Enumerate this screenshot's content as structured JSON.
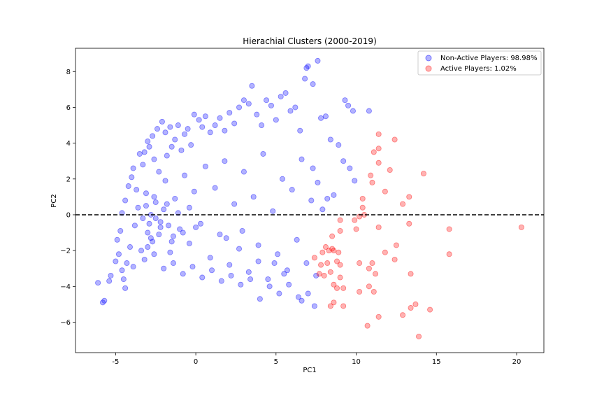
{
  "chart_data": {
    "type": "scatter",
    "title": "Hierachial Clusters (2000-2019)",
    "xlabel": "PC1",
    "ylabel": "PC2",
    "xlim": [
      -7.5,
      21.7
    ],
    "ylim": [
      -7.7,
      9.3
    ],
    "xticks": [
      -5,
      0,
      5,
      10,
      15,
      20
    ],
    "yticks": [
      -6,
      -4,
      -2,
      0,
      2,
      4,
      6,
      8
    ],
    "grid": false,
    "legend": "top-right",
    "reference_line": {
      "axis": "y",
      "value": 0,
      "style": "dashed",
      "color": "#000000"
    },
    "series": [
      {
        "name": "Non-Active Players: 98.98%",
        "color": "#0000ff",
        "alpha": 0.3,
        "points": [
          [
            -6.1,
            -3.8
          ],
          [
            -5.8,
            -4.9
          ],
          [
            -5.7,
            -4.8
          ],
          [
            -5.4,
            -3.7
          ],
          [
            -5.3,
            -3.4
          ],
          [
            -5.0,
            -2.6
          ],
          [
            -4.8,
            -2.2
          ],
          [
            -4.6,
            -3.1
          ],
          [
            -4.5,
            -3.6
          ],
          [
            -4.4,
            -4.1
          ],
          [
            -4.3,
            -2.7
          ],
          [
            -4.9,
            -1.4
          ],
          [
            -4.7,
            -0.9
          ],
          [
            -4.6,
            0.1
          ],
          [
            -4.4,
            0.8
          ],
          [
            -4.2,
            1.6
          ],
          [
            -4.0,
            2.1
          ],
          [
            -3.9,
            2.6
          ],
          [
            -3.7,
            1.4
          ],
          [
            -3.5,
            3.4
          ],
          [
            -3.3,
            2.8
          ],
          [
            -3.2,
            3.5
          ],
          [
            -3.0,
            4.1
          ],
          [
            -2.9,
            3.8
          ],
          [
            -2.7,
            4.4
          ],
          [
            -2.6,
            3.1
          ],
          [
            -2.4,
            4.8
          ],
          [
            -2.3,
            2.4
          ],
          [
            -2.1,
            5.2
          ],
          [
            -1.9,
            4.6
          ],
          [
            -1.8,
            3.3
          ],
          [
            -1.6,
            4.9
          ],
          [
            -1.5,
            3.8
          ],
          [
            -1.3,
            4.2
          ],
          [
            -1.1,
            5.0
          ],
          [
            -0.9,
            3.6
          ],
          [
            -0.7,
            4.5
          ],
          [
            -0.5,
            4.8
          ],
          [
            -0.3,
            3.9
          ],
          [
            -0.1,
            5.6
          ],
          [
            0.2,
            5.3
          ],
          [
            0.4,
            4.9
          ],
          [
            0.6,
            5.5
          ],
          [
            0.9,
            4.6
          ],
          [
            1.2,
            5.0
          ],
          [
            1.5,
            5.4
          ],
          [
            1.8,
            4.7
          ],
          [
            2.1,
            5.7
          ],
          [
            2.4,
            5.1
          ],
          [
            2.7,
            6.0
          ],
          [
            3.0,
            6.4
          ],
          [
            3.3,
            6.2
          ],
          [
            3.5,
            7.2
          ],
          [
            3.8,
            5.6
          ],
          [
            4.1,
            5.0
          ],
          [
            4.4,
            6.4
          ],
          [
            4.7,
            6.1
          ],
          [
            5.0,
            5.3
          ],
          [
            5.3,
            6.6
          ],
          [
            5.6,
            6.8
          ],
          [
            5.9,
            5.8
          ],
          [
            6.2,
            6.0
          ],
          [
            6.5,
            4.7
          ],
          [
            6.8,
            7.6
          ],
          [
            6.9,
            8.2
          ],
          [
            7.0,
            8.3
          ],
          [
            7.3,
            7.3
          ],
          [
            7.6,
            8.6
          ],
          [
            7.8,
            5.4
          ],
          [
            8.1,
            5.5
          ],
          [
            9.3,
            6.4
          ],
          [
            9.5,
            6.1
          ],
          [
            9.8,
            5.8
          ],
          [
            10.8,
            5.8
          ],
          [
            8.4,
            4.2
          ],
          [
            8.9,
            3.9
          ],
          [
            9.2,
            3.0
          ],
          [
            9.6,
            2.6
          ],
          [
            9.9,
            1.9
          ],
          [
            8.6,
            1.1
          ],
          [
            8.2,
            0.9
          ],
          [
            7.6,
            1.8
          ],
          [
            7.3,
            2.6
          ],
          [
            7.9,
            0.3
          ],
          [
            -4.1,
            -1.8
          ],
          [
            -3.8,
            -0.6
          ],
          [
            -3.6,
            0.4
          ],
          [
            -3.4,
            -2.0
          ],
          [
            -3.1,
            1.2
          ],
          [
            -2.8,
            -1.3
          ],
          [
            -2.5,
            0.7
          ],
          [
            -2.2,
            -0.4
          ],
          [
            -1.9,
            1.9
          ],
          [
            -1.6,
            -2.1
          ],
          [
            -1.3,
            0.9
          ],
          [
            -1.0,
            -0.8
          ],
          [
            -0.7,
            2.2
          ],
          [
            -0.4,
            -1.6
          ],
          [
            -0.1,
            1.3
          ],
          [
            0.3,
            -0.5
          ],
          [
            0.6,
            2.7
          ],
          [
            0.9,
            -2.4
          ],
          [
            1.2,
            1.5
          ],
          [
            1.5,
            -1.1
          ],
          [
            1.8,
            3.0
          ],
          [
            2.1,
            -2.8
          ],
          [
            2.4,
            0.6
          ],
          [
            2.7,
            -1.9
          ],
          [
            3.0,
            2.4
          ],
          [
            3.3,
            -3.2
          ],
          [
            3.6,
            1.0
          ],
          [
            3.9,
            -2.6
          ],
          [
            4.2,
            3.4
          ],
          [
            4.5,
            -3.6
          ],
          [
            4.8,
            0.2
          ],
          [
            5.1,
            -2.2
          ],
          [
            5.4,
            2.0
          ],
          [
            5.7,
            -3.1
          ],
          [
            6.0,
            1.4
          ],
          [
            6.3,
            -1.4
          ],
          [
            6.6,
            3.1
          ],
          [
            6.9,
            -2.7
          ],
          [
            7.2,
            0.8
          ],
          [
            7.5,
            -3.4
          ],
          [
            -3.9,
            -2.9
          ],
          [
            -3.2,
            -2.5
          ],
          [
            -2.6,
            -2.2
          ],
          [
            -2.0,
            -3.0
          ],
          [
            -1.4,
            -2.7
          ],
          [
            -0.8,
            -3.3
          ],
          [
            -0.2,
            -2.9
          ],
          [
            0.4,
            -3.5
          ],
          [
            1.0,
            -3.1
          ],
          [
            1.6,
            -3.7
          ],
          [
            2.2,
            -3.4
          ],
          [
            2.8,
            -3.9
          ],
          [
            3.4,
            -3.6
          ],
          [
            4.0,
            -4.7
          ],
          [
            4.6,
            -4.0
          ],
          [
            5.2,
            -4.4
          ],
          [
            5.8,
            -3.9
          ],
          [
            6.4,
            -4.6
          ],
          [
            7.0,
            -4.4
          ],
          [
            7.4,
            -5.1
          ],
          [
            6.6,
            -4.8
          ],
          [
            5.5,
            -3.3
          ],
          [
            4.9,
            -2.7
          ],
          [
            3.9,
            -1.7
          ],
          [
            2.9,
            -0.9
          ],
          [
            1.9,
            -1.3
          ],
          [
            -3.0,
            -1.0
          ],
          [
            -2.8,
            0.0
          ],
          [
            -2.9,
            -0.5
          ],
          [
            -3.1,
            0.5
          ],
          [
            -2.7,
            -1.5
          ],
          [
            -2.5,
            -0.2
          ],
          [
            -2.3,
            -1.1
          ],
          [
            -2.0,
            0.3
          ],
          [
            -1.7,
            -0.6
          ],
          [
            -1.4,
            -1.2
          ],
          [
            -3.3,
            -0.2
          ],
          [
            -3.0,
            -1.8
          ],
          [
            -2.6,
            1.0
          ],
          [
            -2.2,
            -0.7
          ],
          [
            -1.8,
            0.6
          ],
          [
            -1.5,
            -1.5
          ],
          [
            -1.1,
            0.1
          ],
          [
            -0.8,
            -1.0
          ],
          [
            -0.4,
            0.4
          ],
          [
            0.0,
            -0.7
          ]
        ]
      },
      {
        "name": "Active Players: 1.02%",
        "color": "#ff0000",
        "alpha": 0.3,
        "points": [
          [
            11.4,
            4.5
          ],
          [
            12.4,
            4.2
          ],
          [
            11.1,
            3.5
          ],
          [
            11.4,
            3.7
          ],
          [
            11.4,
            2.9
          ],
          [
            14.2,
            2.3
          ],
          [
            12.1,
            2.5
          ],
          [
            10.9,
            2.2
          ],
          [
            11.0,
            1.8
          ],
          [
            11.8,
            1.3
          ],
          [
            13.3,
            1.0
          ],
          [
            12.9,
            0.6
          ],
          [
            10.4,
            0.9
          ],
          [
            10.4,
            0.4
          ],
          [
            10.2,
            -0.1
          ],
          [
            10.5,
            0.0
          ],
          [
            9.9,
            -0.3
          ],
          [
            9.0,
            -0.3
          ],
          [
            9.0,
            -0.9
          ],
          [
            10.0,
            -0.8
          ],
          [
            11.4,
            -0.7
          ],
          [
            13.3,
            -0.5
          ],
          [
            15.8,
            -0.8
          ],
          [
            20.3,
            -0.7
          ],
          [
            8.5,
            -1.2
          ],
          [
            8.1,
            -1.8
          ],
          [
            8.3,
            -2.0
          ],
          [
            8.6,
            -2.0
          ],
          [
            8.9,
            -2.1
          ],
          [
            7.9,
            -2.1
          ],
          [
            7.4,
            -2.4
          ],
          [
            7.8,
            -2.8
          ],
          [
            8.2,
            -2.7
          ],
          [
            8.8,
            -2.6
          ],
          [
            9.0,
            -2.8
          ],
          [
            10.2,
            -2.7
          ],
          [
            11.0,
            -2.7
          ],
          [
            11.8,
            -2.1
          ],
          [
            12.5,
            -1.7
          ],
          [
            15.8,
            -2.2
          ],
          [
            12.4,
            -2.5
          ],
          [
            10.8,
            -3.0
          ],
          [
            11.2,
            -3.3
          ],
          [
            13.4,
            -3.3
          ],
          [
            7.7,
            -3.3
          ],
          [
            8.0,
            -3.4
          ],
          [
            8.4,
            -3.2
          ],
          [
            9.0,
            -3.5
          ],
          [
            8.6,
            -3.9
          ],
          [
            8.8,
            -4.1
          ],
          [
            9.2,
            -4.1
          ],
          [
            10.2,
            -4.3
          ],
          [
            10.8,
            -4.0
          ],
          [
            11.1,
            -4.3
          ],
          [
            8.6,
            -4.9
          ],
          [
            9.2,
            -5.1
          ],
          [
            8.4,
            -5.1
          ],
          [
            10.7,
            -6.2
          ],
          [
            11.4,
            -5.7
          ],
          [
            12.9,
            -5.6
          ],
          [
            13.7,
            -5.0
          ],
          [
            14.6,
            -5.3
          ],
          [
            13.4,
            -5.2
          ],
          [
            13.9,
            -6.8
          ],
          [
            8.5,
            -1.9
          ]
        ]
      }
    ]
  }
}
